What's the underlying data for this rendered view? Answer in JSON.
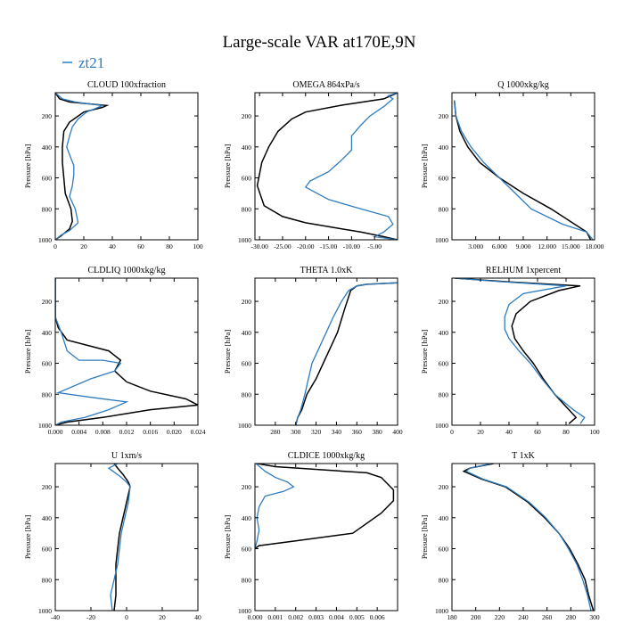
{
  "figure": {
    "title": "Large-scale VAR at170E,9N",
    "legend": [
      {
        "name": "zt21",
        "color": "#2e7cbf"
      }
    ],
    "black_series_color": "#000000",
    "blue_series_color": "#2e7cbf"
  },
  "chart_data": [
    {
      "type": "line",
      "title": "CLOUD  100xfraction",
      "ylabel": "Pressure [hPa]",
      "xlim": [
        0,
        100
      ],
      "ylim": [
        1000,
        50
      ],
      "y_inverted": true,
      "xticks": [
        0,
        20,
        40,
        60,
        80,
        100
      ],
      "xtick_labels": [
        "0",
        "20",
        "40",
        "60",
        "80",
        "100"
      ],
      "yticks": [
        200,
        400,
        600,
        800,
        1000
      ],
      "ytick_labels": [
        "200",
        "400",
        "600",
        "800",
        "1000"
      ],
      "series": [
        {
          "color": "black",
          "x": [
            0,
            3,
            10,
            22,
            36,
            33,
            20,
            10,
            6,
            5,
            5,
            6,
            7,
            11,
            12,
            10,
            4,
            0
          ],
          "y": [
            50,
            90,
            110,
            120,
            133,
            145,
            175,
            240,
            300,
            400,
            500,
            600,
            700,
            800,
            880,
            930,
            975,
            1000
          ]
        },
        {
          "color": "blue",
          "x": [
            0,
            5,
            14,
            22,
            33,
            30,
            22,
            16,
            12,
            10,
            8,
            10,
            13,
            13,
            12,
            10,
            14,
            16,
            10,
            4,
            0
          ],
          "y": [
            50,
            90,
            110,
            120,
            133,
            145,
            175,
            220,
            270,
            330,
            400,
            450,
            520,
            580,
            650,
            720,
            800,
            890,
            940,
            970,
            1000
          ]
        }
      ]
    },
    {
      "type": "line",
      "title": "OMEGA  864xPa/s",
      "ylabel": "",
      "xlim": [
        -31,
        0
      ],
      "ylim": [
        1000,
        50
      ],
      "y_inverted": true,
      "xticks": [
        -30,
        -25,
        -20,
        -15,
        -10,
        -5
      ],
      "xtick_labels": [
        "-30.00",
        "-25.00",
        "-20.00",
        "-15.00",
        "-10.00",
        "-5.00"
      ],
      "yticks": [
        200,
        400,
        600,
        800,
        1000
      ],
      "ytick_labels": [
        "200",
        "400",
        "600",
        "800",
        "1000"
      ],
      "series": [
        {
          "color": "black",
          "x": [
            0,
            -3,
            -12,
            -20,
            -23,
            -26,
            -28,
            -29.5,
            -30.5,
            -29,
            -25,
            -20,
            -14,
            -8,
            -3,
            0
          ],
          "y": [
            50,
            90,
            130,
            175,
            220,
            300,
            400,
            500,
            650,
            780,
            850,
            890,
            920,
            950,
            980,
            1000
          ]
        },
        {
          "color": "blue",
          "x": [
            0,
            -2,
            -1,
            -3,
            -6,
            -8,
            -10,
            -10,
            -10,
            -12,
            -15,
            -19,
            -20,
            -15,
            -8,
            -2,
            -1,
            -3,
            -5,
            0
          ],
          "y": [
            50,
            70,
            90,
            140,
            200,
            260,
            330,
            380,
            420,
            480,
            560,
            620,
            660,
            740,
            800,
            850,
            900,
            950,
            980,
            1000
          ]
        }
      ]
    },
    {
      "type": "line",
      "title": "Q  1000xkg/kg",
      "ylabel": "",
      "xlim": [
        0,
        18
      ],
      "ylim": [
        1000,
        50
      ],
      "y_inverted": true,
      "xticks": [
        3,
        6,
        9,
        12,
        15,
        18
      ],
      "xtick_labels": [
        "3.000",
        "6.000",
        "9.000",
        "12.000",
        "15.000",
        "18.000"
      ],
      "yticks": [
        200,
        400,
        600,
        800,
        1000
      ],
      "ytick_labels": [
        "200",
        "400",
        "600",
        "800",
        "1000"
      ],
      "series": [
        {
          "color": "black",
          "x": [
            0.3,
            0.5,
            1.0,
            2.0,
            3.5,
            6.0,
            9.0,
            12.5,
            15.5,
            17.0,
            17.5
          ],
          "y": [
            100,
            200,
            300,
            400,
            500,
            600,
            700,
            800,
            900,
            950,
            1000
          ]
        },
        {
          "color": "blue",
          "x": [
            0.3,
            0.5,
            1.2,
            2.4,
            4.0,
            6.0,
            8.0,
            10.0,
            14.0,
            17.0,
            17.8
          ],
          "y": [
            100,
            200,
            300,
            400,
            500,
            600,
            700,
            800,
            900,
            950,
            1000
          ]
        }
      ]
    },
    {
      "type": "line",
      "title": "CLDLIQ  1000xkg/kg",
      "ylabel": "Pressure [hPa]",
      "xlim": [
        0,
        0.024
      ],
      "ylim": [
        1000,
        50
      ],
      "y_inverted": true,
      "xticks": [
        0,
        0.004,
        0.008,
        0.012,
        0.016,
        0.02,
        0.024
      ],
      "xtick_labels": [
        "0.000",
        "0.004",
        "0.008",
        "0.012",
        "0.016",
        "0.020",
        "0.024"
      ],
      "yticks": [
        200,
        400,
        600,
        800,
        1000
      ],
      "ytick_labels": [
        "200",
        "400",
        "600",
        "800",
        "1000"
      ],
      "series": [
        {
          "color": "black",
          "x": [
            0,
            0,
            0.0005,
            0.002,
            0.009,
            0.011,
            0.01,
            0.012,
            0.016,
            0.022,
            0.024,
            0.016,
            0.008,
            0.002,
            0
          ],
          "y": [
            50,
            300,
            370,
            450,
            520,
            580,
            650,
            720,
            780,
            830,
            870,
            900,
            950,
            980,
            1000
          ]
        },
        {
          "color": "blue",
          "x": [
            0,
            0,
            0.0005,
            0.001,
            0.002,
            0.004,
            0.008,
            0.011,
            0.01,
            0.006,
            0.0005,
            0.006,
            0.012,
            0.009,
            0.005,
            0.001,
            0
          ],
          "y": [
            50,
            300,
            350,
            400,
            520,
            580,
            580,
            600,
            650,
            700,
            790,
            820,
            850,
            900,
            950,
            980,
            1000
          ]
        }
      ]
    },
    {
      "type": "line",
      "title": "THETA  1.0xK",
      "ylabel": "",
      "xlim": [
        260,
        400
      ],
      "ylim": [
        1000,
        50
      ],
      "y_inverted": true,
      "xticks": [
        280,
        300,
        320,
        340,
        360,
        380,
        400
      ],
      "xtick_labels": [
        "280",
        "300",
        "320",
        "340",
        "360",
        "380",
        "400"
      ],
      "yticks": [
        200,
        400,
        600,
        800,
        1000
      ],
      "ytick_labels": [
        "200",
        "400",
        "600",
        "800",
        "1000"
      ],
      "series": [
        {
          "color": "black",
          "x": [
            400,
            370,
            360,
            354,
            348,
            341,
            334,
            327,
            320,
            311,
            306,
            302,
            300
          ],
          "y": [
            80,
            90,
            100,
            130,
            250,
            400,
            500,
            600,
            700,
            800,
            900,
            950,
            1000
          ]
        },
        {
          "color": "blue",
          "x": [
            400,
            370,
            360,
            352,
            345,
            337,
            330,
            323,
            316,
            309,
            305,
            302,
            300
          ],
          "y": [
            80,
            90,
            100,
            130,
            200,
            300,
            400,
            500,
            600,
            800,
            900,
            950,
            1000
          ]
        }
      ]
    },
    {
      "type": "line",
      "title": "RELHUM  1xpercent",
      "ylabel": "",
      "xlim": [
        0,
        100
      ],
      "ylim": [
        1000,
        50
      ],
      "y_inverted": true,
      "xticks": [
        0,
        20,
        40,
        60,
        80,
        100
      ],
      "xtick_labels": [
        "0",
        "20",
        "40",
        "60",
        "80",
        "100"
      ],
      "yticks": [
        200,
        400,
        600,
        800,
        1000
      ],
      "ytick_labels": [
        "200",
        "400",
        "600",
        "800",
        "1000"
      ],
      "series": [
        {
          "color": "black",
          "x": [
            2,
            40,
            90,
            75,
            55,
            45,
            42,
            44,
            50,
            57,
            64,
            72,
            82,
            87,
            82
          ],
          "y": [
            50,
            75,
            100,
            130,
            200,
            280,
            360,
            440,
            520,
            600,
            700,
            800,
            900,
            950,
            990
          ]
        },
        {
          "color": "blue",
          "x": [
            2,
            30,
            80,
            50,
            40,
            37,
            37,
            40,
            47,
            55,
            63,
            72,
            85,
            93,
            90
          ],
          "y": [
            50,
            70,
            100,
            150,
            220,
            300,
            380,
            440,
            520,
            600,
            700,
            800,
            900,
            950,
            990
          ]
        }
      ]
    },
    {
      "type": "line",
      "title": "U  1xm/s",
      "ylabel": "Pressure [hPa]",
      "xlim": [
        -40,
        40
      ],
      "ylim": [
        1000,
        50
      ],
      "y_inverted": true,
      "xticks": [
        -40,
        -20,
        0,
        20,
        40
      ],
      "xtick_labels": [
        "-40",
        "-20",
        "0",
        "20",
        "40"
      ],
      "yticks": [
        200,
        400,
        600,
        800,
        1000
      ],
      "ytick_labels": [
        "200",
        "400",
        "600",
        "800",
        "1000"
      ],
      "series": [
        {
          "color": "black",
          "x": [
            -7,
            -5,
            -2,
            1,
            2,
            0,
            -2,
            -4,
            -5,
            -6,
            -6,
            -6,
            -7
          ],
          "y": [
            50,
            80,
            120,
            170,
            200,
            300,
            400,
            500,
            600,
            700,
            800,
            900,
            1000
          ]
        },
        {
          "color": "blue",
          "x": [
            -5,
            -10,
            -4,
            0,
            2,
            1,
            -1,
            -3,
            -4,
            -5,
            -7,
            -9,
            -8
          ],
          "y": [
            50,
            80,
            130,
            170,
            200,
            300,
            400,
            500,
            600,
            700,
            800,
            900,
            1000
          ]
        }
      ]
    },
    {
      "type": "line",
      "title": "CLDICE  1000xkg/kg",
      "ylabel": "",
      "xlim": [
        0,
        0.007
      ],
      "ylim": [
        1000,
        50
      ],
      "y_inverted": true,
      "xticks": [
        0,
        0.001,
        0.002,
        0.003,
        0.004,
        0.005,
        0.006
      ],
      "xtick_labels": [
        "0.000",
        "0.001",
        "0.002",
        "0.003",
        "0.004",
        "0.005",
        "0.006"
      ],
      "yticks": [
        200,
        400,
        600,
        800,
        1000
      ],
      "ytick_labels": [
        "200",
        "400",
        "600",
        "800",
        "1000"
      ],
      "series": [
        {
          "color": "black",
          "x": [
            0.0001,
            0.001,
            0.0055,
            0.0062,
            0.0065,
            0.0068,
            0.0068,
            0.0062,
            0.0048,
            0.002,
            0.0002,
            0
          ],
          "y": [
            50,
            70,
            110,
            140,
            180,
            220,
            290,
            370,
            500,
            550,
            580,
            600
          ]
        },
        {
          "color": "blue",
          "x": [
            5e-05,
            0.0005,
            0.001,
            0.0016,
            0.0019,
            0.0014,
            0.0005,
            0.0002,
            0.0001,
            0.0002,
            0.0001,
            0
          ],
          "y": [
            50,
            100,
            140,
            170,
            200,
            230,
            260,
            330,
            400,
            480,
            550,
            600
          ]
        }
      ]
    },
    {
      "type": "line",
      "title": "T  1xK",
      "ylabel": "",
      "xlim": [
        180,
        300
      ],
      "ylim": [
        1000,
        50
      ],
      "y_inverted": true,
      "xticks": [
        180,
        200,
        220,
        240,
        260,
        280,
        300
      ],
      "xtick_labels": [
        "180",
        "200",
        "220",
        "240",
        "260",
        "280",
        "300"
      ],
      "yticks": [
        200,
        400,
        600,
        800,
        1000
      ],
      "ytick_labels": [
        "200",
        "400",
        "600",
        "800",
        "1000"
      ],
      "series": [
        {
          "color": "black",
          "x": [
            215,
            195,
            190,
            205,
            225,
            244,
            258,
            270,
            279,
            286,
            292,
            295,
            299
          ],
          "y": [
            50,
            80,
            100,
            150,
            200,
            300,
            400,
            500,
            600,
            700,
            800,
            900,
            1000
          ]
        },
        {
          "color": "blue",
          "x": [
            213,
            195,
            192,
            206,
            226,
            245,
            259,
            270,
            278,
            285,
            290,
            294,
            297
          ],
          "y": [
            50,
            80,
            100,
            150,
            200,
            300,
            400,
            500,
            600,
            700,
            800,
            900,
            1000
          ]
        }
      ]
    }
  ]
}
